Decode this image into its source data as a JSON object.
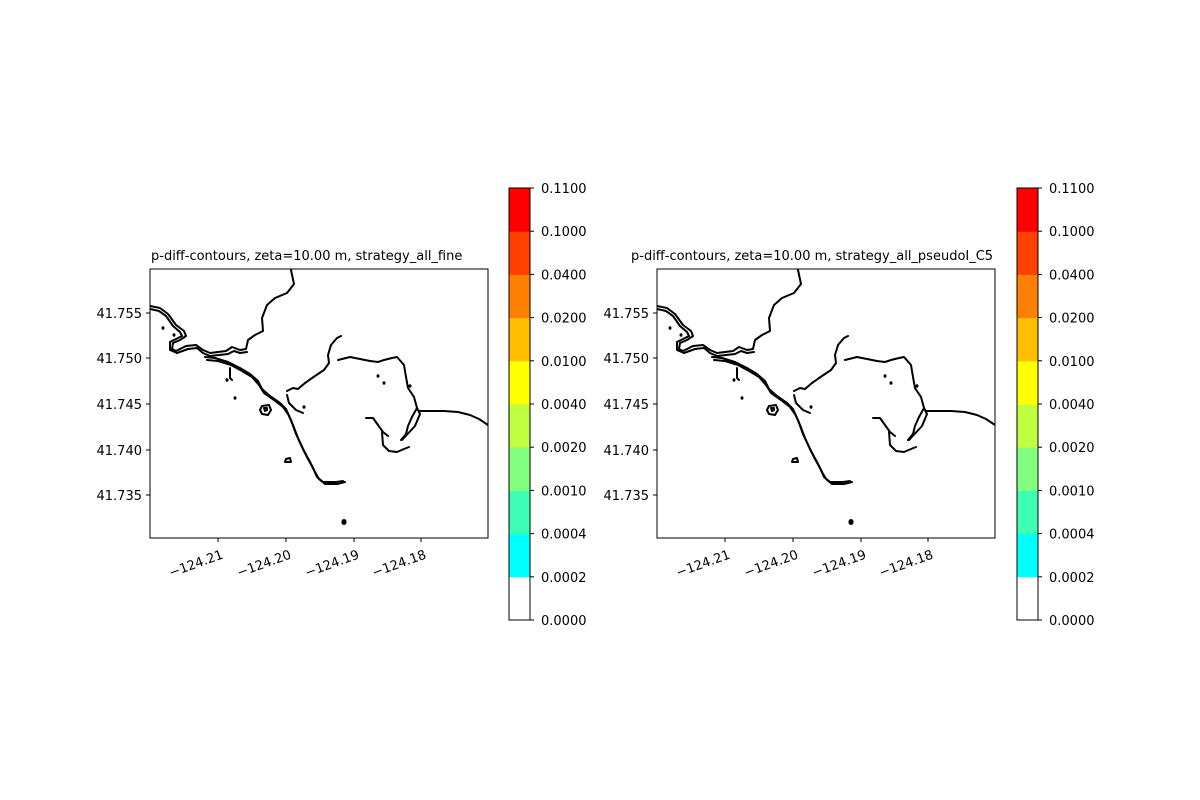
{
  "chart_data": [
    {
      "type": "contour-map",
      "title": "p-diff-contours, zeta=10.00 m, strategy_all_fine",
      "xlabel": "",
      "ylabel": "",
      "xticks": [
        "−124.21",
        "−124.20",
        "−124.19",
        "−124.18"
      ],
      "yticks": [
        "41.735",
        "41.740",
        "41.745",
        "41.750",
        "41.755"
      ],
      "colorbar": {
        "ticks": [
          "0.0000",
          "0.0002",
          "0.0004",
          "0.0010",
          "0.0020",
          "0.0040",
          "0.0100",
          "0.0200",
          "0.0400",
          "0.1000",
          "0.1100"
        ],
        "colors": [
          "#ffffff",
          "#00ffff",
          "#3cffb4",
          "#80ff80",
          "#c0ff40",
          "#ffff00",
          "#ffbf00",
          "#ff8000",
          "#ff4000",
          "#ff0000"
        ]
      },
      "grid": false
    },
    {
      "type": "contour-map",
      "title": "p-diff-contours, zeta=10.00 m, strategy_all_pseudoI_C5",
      "xlabel": "",
      "ylabel": "",
      "xticks": [
        "−124.21",
        "−124.20",
        "−124.19",
        "−124.18"
      ],
      "yticks": [
        "41.735",
        "41.740",
        "41.745",
        "41.750",
        "41.755"
      ],
      "colorbar": {
        "ticks": [
          "0.0000",
          "0.0002",
          "0.0004",
          "0.0010",
          "0.0020",
          "0.0040",
          "0.0100",
          "0.0200",
          "0.0400",
          "0.1000",
          "0.1100"
        ],
        "colors": [
          "#ffffff",
          "#00ffff",
          "#3cffb4",
          "#80ff80",
          "#c0ff40",
          "#ffff00",
          "#ffbf00",
          "#ff8000",
          "#ff4000",
          "#ff0000"
        ]
      },
      "grid": false
    }
  ]
}
